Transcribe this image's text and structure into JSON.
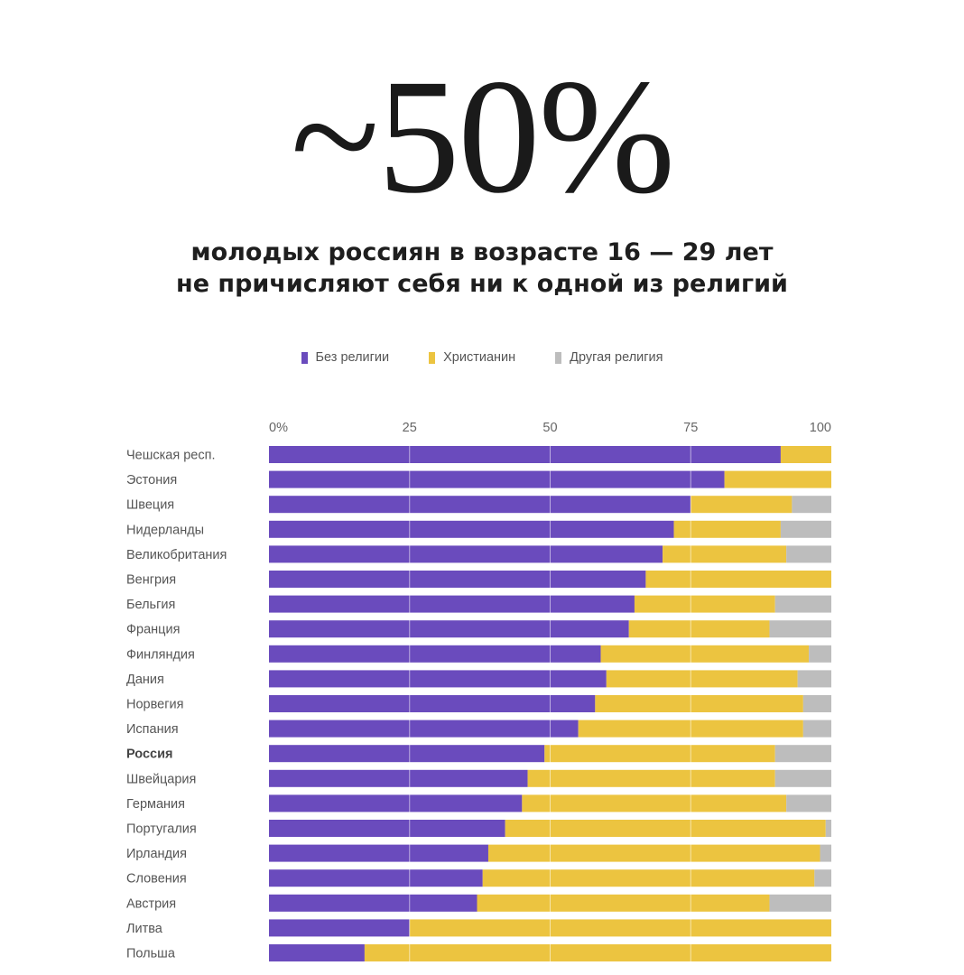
{
  "headline": "~50%",
  "subtitle": {
    "line1": "молодых россиян в возрасте 16 — 29 лет",
    "line2": "не причисляют себя ни к одной из религий"
  },
  "colors": {
    "none": "#6a4bbd",
    "christian": "#ecc440",
    "other": "#bdbdbd"
  },
  "legend": [
    {
      "key": "none",
      "label": "Без религии"
    },
    {
      "key": "christian",
      "label": "Христианин"
    },
    {
      "key": "other",
      "label": "Другая религия"
    }
  ],
  "chart_data": {
    "type": "bar",
    "orientation": "horizontal",
    "stacked": true,
    "title": "~50%",
    "subtitle": "молодых россиян в возрасте 16 — 29 лет не причисляют себя ни к одной из религий",
    "xlim": [
      0,
      100
    ],
    "xticks": [
      {
        "value": 0,
        "label": "0%"
      },
      {
        "value": 25,
        "label": "25"
      },
      {
        "value": 50,
        "label": "50"
      },
      {
        "value": 75,
        "label": "75"
      },
      {
        "value": 100,
        "label": "100"
      }
    ],
    "highlight": "Россия",
    "categories": [
      "Чешская респ.",
      "Эстония",
      "Швеция",
      "Нидерланды",
      "Великобритания",
      "Венгрия",
      "Бельгия",
      "Франция",
      "Финляндия",
      "Дания",
      "Норвегия",
      "Испания",
      "Россия",
      "Швейцария",
      "Германия",
      "Португалия",
      "Ирландия",
      "Словения",
      "Австрия",
      "Литва",
      "Польша"
    ],
    "series": [
      {
        "key": "none",
        "name": "Без религии",
        "values": [
          91,
          81,
          75,
          72,
          70,
          67,
          65,
          64,
          59,
          60,
          58,
          55,
          49,
          46,
          45,
          42,
          39,
          38,
          37,
          25,
          17
        ]
      },
      {
        "key": "christian",
        "name": "Христианин",
        "values": [
          9,
          19,
          18,
          19,
          22,
          33,
          25,
          25,
          37,
          34,
          37,
          40,
          41,
          44,
          47,
          57,
          59,
          59,
          52,
          75,
          83
        ]
      },
      {
        "key": "other",
        "name": "Другая религия",
        "values": [
          0,
          0,
          7,
          9,
          8,
          0,
          10,
          11,
          4,
          6,
          5,
          5,
          10,
          10,
          8,
          1,
          2,
          3,
          11,
          0,
          0
        ]
      }
    ]
  }
}
